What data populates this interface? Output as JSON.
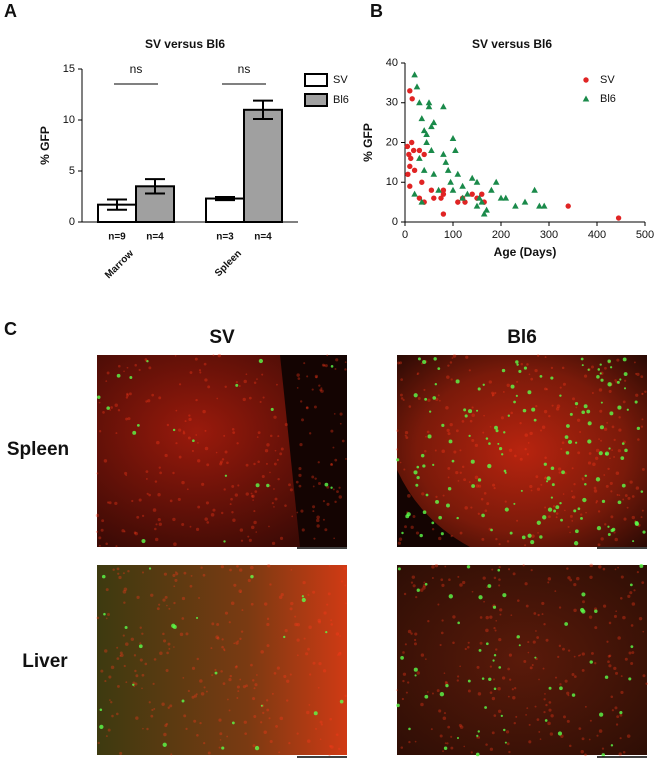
{
  "chart_data": [
    {
      "type": "bar",
      "title": "SV versus Bl6",
      "y_label": "% GFP",
      "categories": [
        "Marrow",
        "Spleen"
      ],
      "series": [
        {
          "name": "SV",
          "color": "#ffffff",
          "values": [
            1.7,
            2.3
          ],
          "errors": [
            0.5,
            0.15
          ],
          "sample_sizes": [
            "n=9",
            "n=3"
          ]
        },
        {
          "name": "Bl6",
          "color": "#a0a0a0",
          "values": [
            3.5,
            11
          ],
          "errors": [
            0.7,
            0.9
          ],
          "sample_sizes": [
            "n=4",
            "n=4"
          ]
        }
      ],
      "significance": [
        "ns",
        "ns"
      ],
      "ylim": [
        0,
        15
      ],
      "yticks": [
        0,
        5,
        10,
        15
      ],
      "legend": "right"
    },
    {
      "type": "scatter",
      "title": "SV versus Bl6",
      "x_label": "Age (Days)",
      "y_label": "% GFP",
      "series": [
        {
          "name": "SV",
          "color": "#e02424",
          "marker": "circle",
          "x": [
            10,
            15,
            5,
            8,
            12,
            14,
            10,
            6,
            18,
            10,
            20,
            30,
            40,
            35,
            30,
            40,
            55,
            60,
            75,
            80,
            80,
            80,
            110,
            120,
            125,
            140,
            150,
            160,
            165,
            340,
            445
          ],
          "values": [
            33,
            31,
            19,
            17,
            16,
            20,
            14,
            12,
            18,
            9,
            13,
            18,
            17,
            10,
            6,
            5,
            8,
            6,
            6,
            2,
            8,
            7,
            5,
            6,
            5,
            7,
            6,
            7,
            5,
            4,
            1
          ]
        },
        {
          "name": "Bl6",
          "color": "#1a8a4a",
          "marker": "triangle",
          "x": [
            20,
            25,
            30,
            35,
            40,
            45,
            50,
            55,
            50,
            60,
            45,
            55,
            80,
            85,
            90,
            80,
            100,
            105,
            95,
            100,
            110,
            120,
            130,
            140,
            150,
            155,
            160,
            165,
            170,
            180,
            190,
            200,
            210,
            230,
            250,
            270,
            280,
            290,
            60,
            70,
            30,
            40,
            20,
            35,
            120,
            150
          ],
          "values": [
            37,
            34,
            30,
            26,
            23,
            22,
            29,
            24,
            30,
            25,
            20,
            18,
            29,
            15,
            13,
            17,
            21,
            18,
            10,
            8,
            12,
            9,
            7,
            11,
            10,
            6,
            5,
            2,
            3,
            8,
            10,
            6,
            6,
            4,
            5,
            8,
            4,
            4,
            12,
            8,
            16,
            13,
            7,
            5,
            6,
            4
          ]
        }
      ],
      "xlim": [
        0,
        500
      ],
      "xticks": [
        0,
        100,
        200,
        300,
        400,
        500
      ],
      "ylim": [
        0,
        40
      ],
      "yticks": [
        0,
        10,
        20,
        30,
        40
      ],
      "legend": "upper right"
    }
  ],
  "figure": {
    "panel_labels": [
      "A",
      "B",
      "C"
    ],
    "image_grid": {
      "columns": [
        "SV",
        "Bl6"
      ],
      "rows": [
        "Spleen",
        "Liver"
      ]
    }
  }
}
